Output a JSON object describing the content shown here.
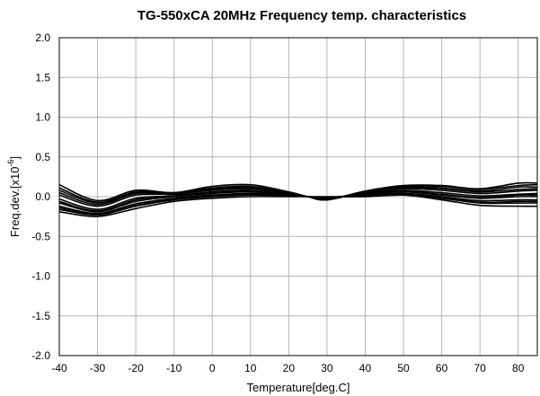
{
  "chart_data": {
    "type": "line",
    "title": "TG-550xCA 20MHz Frequency temp. characteristics",
    "xlabel": "Temperature[deg.C]",
    "ylabel": {
      "prefix": "Freq.dev.[x10",
      "superscript": "-6",
      "suffix": "]"
    },
    "xlim": [
      -40,
      85
    ],
    "ylim": [
      -2.0,
      2.0
    ],
    "xticks": [
      -40,
      -30,
      -20,
      -10,
      0,
      10,
      20,
      30,
      40,
      50,
      60,
      70,
      80
    ],
    "xtick_labels": [
      "-40",
      "-30",
      "-20",
      "-10",
      "0",
      "10",
      "20",
      "30",
      "40",
      "50",
      "60",
      "70",
      "80"
    ],
    "yticks": [
      2.0,
      1.5,
      1.0,
      0.5,
      0.0,
      -0.5,
      -1.0,
      -1.5,
      -2.0
    ],
    "ytick_labels": [
      "2.0",
      "1.5",
      "1.0",
      "0.5",
      "0.0",
      "-0.5",
      "-1.0",
      "-1.5",
      "-2.0"
    ],
    "grid": true,
    "x": [
      -40,
      -30,
      -20,
      -10,
      0,
      10,
      20,
      25,
      30,
      40,
      50,
      60,
      70,
      80,
      85
    ],
    "series": [
      {
        "values": [
          0.15,
          -0.05,
          0.08,
          0.05,
          0.13,
          0.15,
          0.06,
          0.0,
          -0.04,
          0.07,
          0.14,
          0.14,
          0.1,
          0.17,
          0.17
        ]
      },
      {
        "values": [
          0.08,
          -0.08,
          0.05,
          0.04,
          0.1,
          0.12,
          0.05,
          0.0,
          -0.03,
          0.06,
          0.12,
          0.11,
          0.07,
          0.12,
          0.12
        ]
      },
      {
        "values": [
          0.02,
          -0.12,
          0.02,
          0.03,
          0.08,
          0.1,
          0.04,
          0.0,
          -0.03,
          0.05,
          0.1,
          0.08,
          0.04,
          0.07,
          0.08
        ]
      },
      {
        "values": [
          -0.03,
          -0.16,
          -0.02,
          0.01,
          0.06,
          0.08,
          0.03,
          0.0,
          -0.02,
          0.04,
          0.08,
          0.05,
          0.01,
          0.03,
          0.04
        ]
      },
      {
        "values": [
          -0.08,
          -0.19,
          -0.06,
          0.0,
          0.04,
          0.06,
          0.02,
          0.0,
          -0.02,
          0.03,
          0.06,
          0.02,
          -0.02,
          0.0,
          0.0
        ]
      },
      {
        "values": [
          -0.12,
          -0.21,
          -0.09,
          -0.02,
          0.02,
          0.04,
          0.02,
          0.0,
          -0.01,
          0.02,
          0.04,
          0.0,
          -0.05,
          -0.04,
          -0.04
        ]
      },
      {
        "values": [
          -0.16,
          -0.23,
          -0.12,
          -0.04,
          0.0,
          0.02,
          0.01,
          0.0,
          -0.01,
          0.01,
          0.03,
          -0.02,
          -0.08,
          -0.08,
          -0.08
        ]
      },
      {
        "values": [
          -0.19,
          -0.25,
          -0.15,
          -0.06,
          -0.02,
          0.0,
          0.0,
          0.0,
          0.0,
          0.0,
          0.02,
          -0.04,
          -0.11,
          -0.12,
          -0.12
        ]
      },
      {
        "values": [
          0.05,
          -0.1,
          0.04,
          0.03,
          0.09,
          0.11,
          0.05,
          0.0,
          -0.03,
          0.05,
          0.11,
          0.1,
          0.06,
          0.09,
          0.1
        ]
      },
      {
        "values": [
          -0.06,
          -0.18,
          -0.04,
          0.01,
          0.05,
          0.07,
          0.03,
          0.0,
          -0.02,
          0.03,
          0.07,
          0.03,
          -0.01,
          0.02,
          0.02
        ]
      },
      {
        "values": [
          -0.14,
          -0.22,
          -0.11,
          -0.03,
          0.01,
          0.03,
          0.01,
          0.0,
          -0.01,
          0.02,
          0.04,
          -0.01,
          -0.07,
          -0.06,
          -0.06
        ]
      },
      {
        "values": [
          0.11,
          -0.07,
          0.06,
          0.05,
          0.11,
          0.13,
          0.05,
          0.0,
          -0.04,
          0.06,
          0.13,
          0.13,
          0.09,
          0.14,
          0.15
        ]
      }
    ]
  }
}
